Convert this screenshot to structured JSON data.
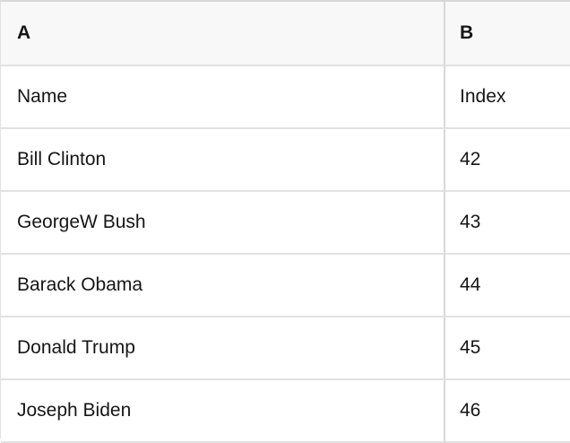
{
  "table": {
    "column_letters": [
      "A",
      "B"
    ],
    "field_labels": [
      "Name",
      "Index"
    ],
    "records": [
      {
        "name": "Bill Clinton",
        "index": 42
      },
      {
        "name": "GeorgeW Bush",
        "index": 43
      },
      {
        "name": "Barack Obama",
        "index": 44
      },
      {
        "name": "Donald Trump",
        "index": 45
      },
      {
        "name": "Joseph Biden",
        "index": 46
      }
    ]
  },
  "colors": {
    "header_background": "#f8f8f8",
    "grid_line": "#e2e2e2",
    "outer_border": "#d8d8d8",
    "text": "#161616"
  }
}
